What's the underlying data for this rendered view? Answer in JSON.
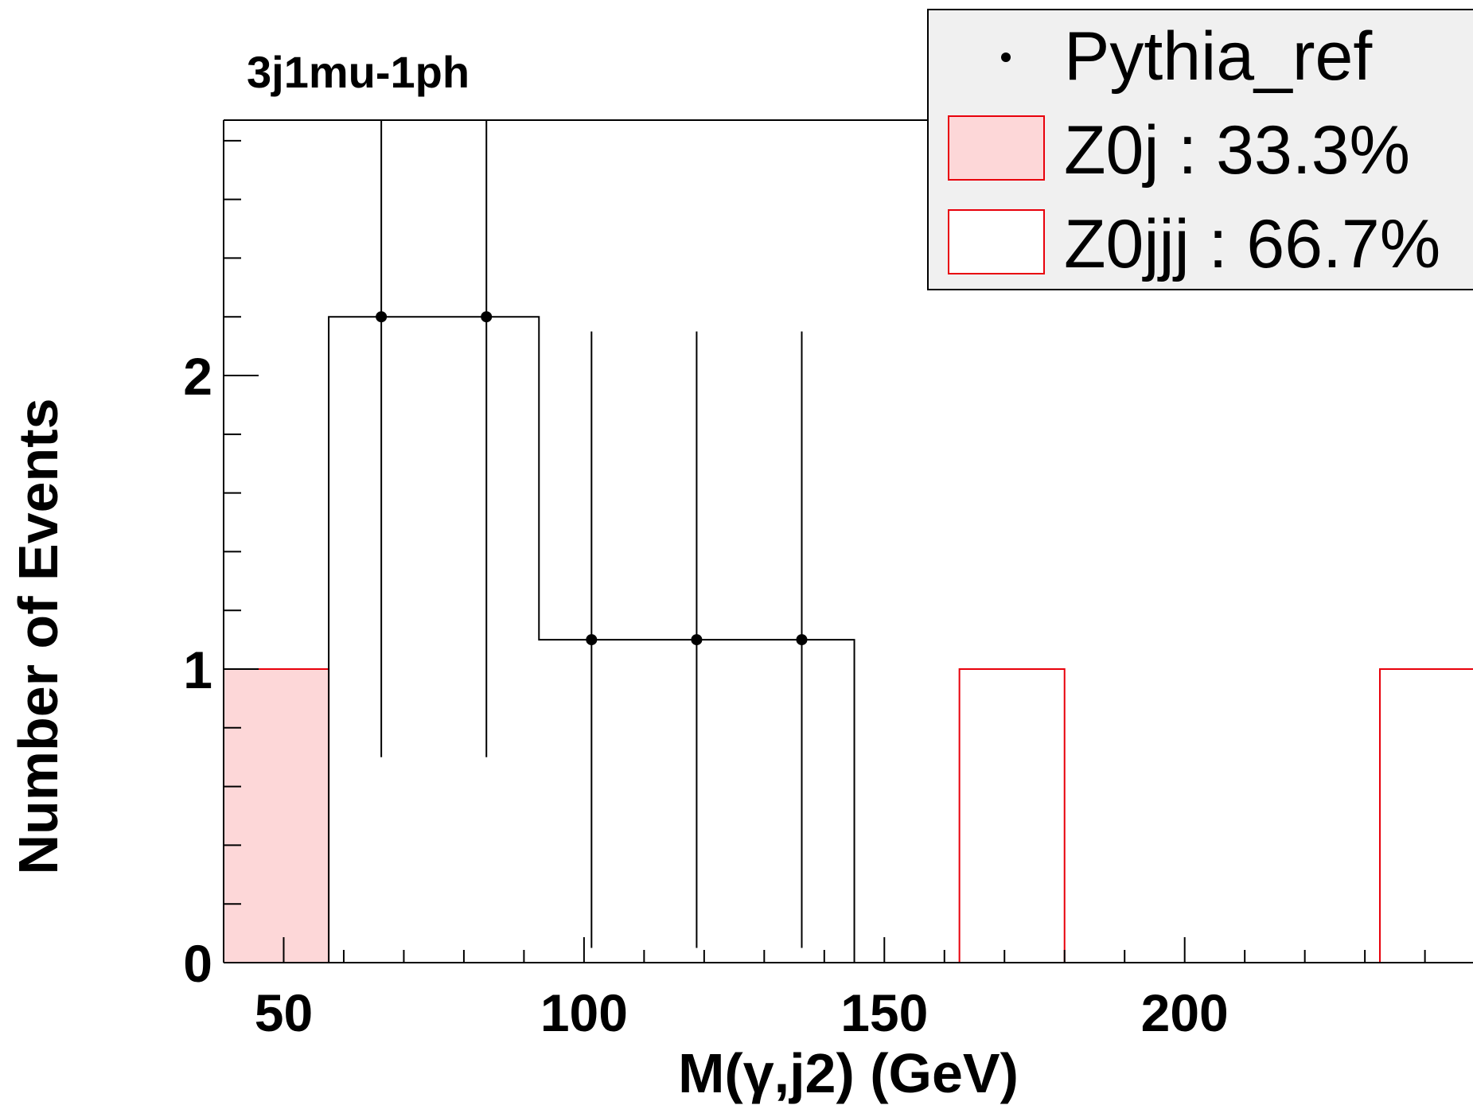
{
  "chart_data": {
    "type": "bar",
    "title": "3j1mu-1ph",
    "xlabel": "M(γ,j2) (GeV)",
    "ylabel": "Number of Events",
    "xlim": [
      40,
      248
    ],
    "ylim": [
      0,
      2.87
    ],
    "x_ticks": [
      50,
      100,
      150,
      200
    ],
    "y_ticks": [
      0,
      1,
      2
    ],
    "x_minor_step": 10,
    "y_minor_step": 0.2,
    "bin_edges": [
      40,
      57.5,
      75,
      92.5,
      110,
      127.5,
      145,
      162.5,
      180,
      197.5,
      215,
      232.5,
      250
    ],
    "series": [
      {
        "name": "Z0j : 33.3%",
        "style": "filled",
        "values": [
          1,
          0,
          0,
          0,
          0,
          0,
          0,
          0,
          0,
          0,
          0,
          0
        ]
      },
      {
        "name": "Z0jjj : 66.7%",
        "style": "outline",
        "values": [
          0,
          0,
          0,
          0,
          0,
          0,
          0,
          1,
          0,
          0,
          0,
          1
        ]
      },
      {
        "name": "Pythia_ref",
        "style": "points",
        "histogram_values": [
          0,
          2.2,
          2.2,
          1.1,
          1.1,
          1.1,
          0,
          0,
          0,
          0,
          0,
          0
        ],
        "points": [
          {
            "x": 66.25,
            "y": 2.2,
            "err_low": 1.5,
            "err_high": 0.67
          },
          {
            "x": 83.75,
            "y": 2.2,
            "err_low": 1.5,
            "err_high": 0.67
          },
          {
            "x": 101.25,
            "y": 1.1,
            "err_low": 1.05,
            "err_high": 1.05
          },
          {
            "x": 118.75,
            "y": 1.1,
            "err_low": 1.05,
            "err_high": 1.05
          },
          {
            "x": 136.25,
            "y": 1.1,
            "err_low": 1.05,
            "err_high": 1.05
          }
        ]
      }
    ],
    "legend_position": "top-right",
    "colors": {
      "filled_fill": "#fdd7d8",
      "z0_line": "#e8000b",
      "ref_line": "#000000",
      "legend_bg": "#f0f0f0"
    }
  }
}
